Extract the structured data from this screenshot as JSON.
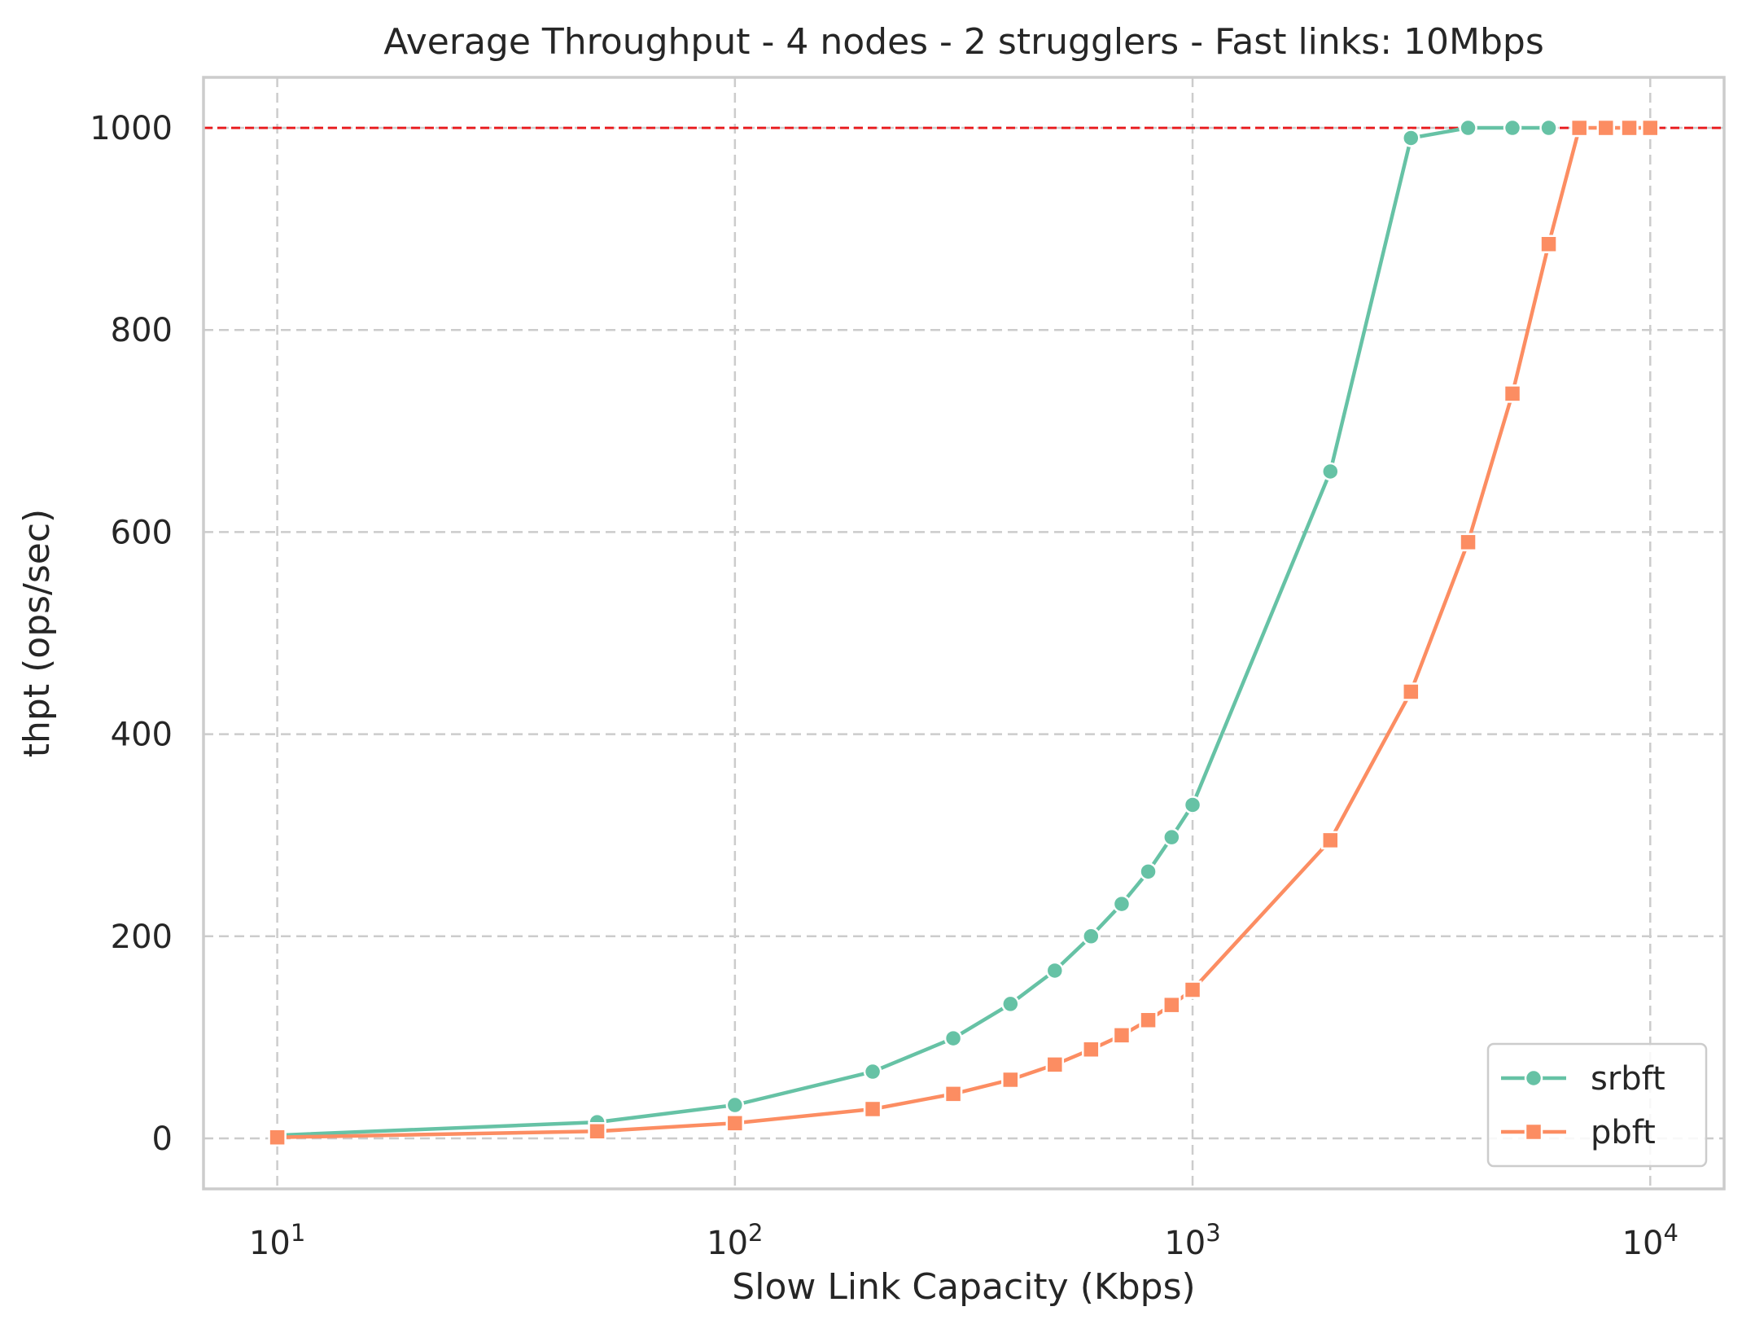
{
  "chart_data": {
    "type": "line",
    "title": "Average Throughput - 4 nodes - 2 strugglers - Fast links: 10Mbps",
    "xlabel": "Slow Link Capacity (Kbps)",
    "ylabel": "thpt (ops/sec)",
    "x_scale": "log",
    "xlim": [
      6.9,
      14500
    ],
    "ylim": [
      -50,
      1050
    ],
    "x_ticks": [
      {
        "value": 10,
        "base": "10",
        "exp": "1"
      },
      {
        "value": 100,
        "base": "10",
        "exp": "2"
      },
      {
        "value": 1000,
        "base": "10",
        "exp": "3"
      },
      {
        "value": 10000,
        "base": "10",
        "exp": "4"
      }
    ],
    "y_ticks": [
      {
        "value": 0,
        "label": "0"
      },
      {
        "value": 200,
        "label": "200"
      },
      {
        "value": 400,
        "label": "400"
      },
      {
        "value": 600,
        "label": "600"
      },
      {
        "value": 800,
        "label": "800"
      },
      {
        "value": 1000,
        "label": "1000"
      }
    ],
    "grid": true,
    "reference_line": {
      "y": 1000,
      "color": "#e8191c"
    },
    "legend_position": "bottom-right",
    "series": [
      {
        "name": "srbft",
        "marker": "circle",
        "color": "#66c2a5",
        "x": [
          10,
          50,
          100,
          200,
          300,
          400,
          500,
          600,
          700,
          800,
          900,
          1000,
          2000,
          3000,
          4000,
          5000,
          6000
        ],
        "values": [
          3,
          16,
          33,
          66,
          99,
          133,
          166,
          200,
          232,
          264,
          298,
          330,
          660,
          990,
          1000,
          1000,
          1000
        ]
      },
      {
        "name": "pbft",
        "marker": "square",
        "color": "#fc8d62",
        "x": [
          10,
          50,
          100,
          200,
          300,
          400,
          500,
          600,
          700,
          800,
          900,
          1000,
          2000,
          3000,
          4000,
          5000,
          6000,
          7000,
          8000,
          9000,
          10000
        ],
        "values": [
          1,
          7,
          15,
          29,
          44,
          58,
          73,
          88,
          102,
          117,
          132,
          147,
          295,
          442,
          590,
          737,
          885,
          1000,
          1000,
          1000,
          1000
        ]
      }
    ]
  }
}
